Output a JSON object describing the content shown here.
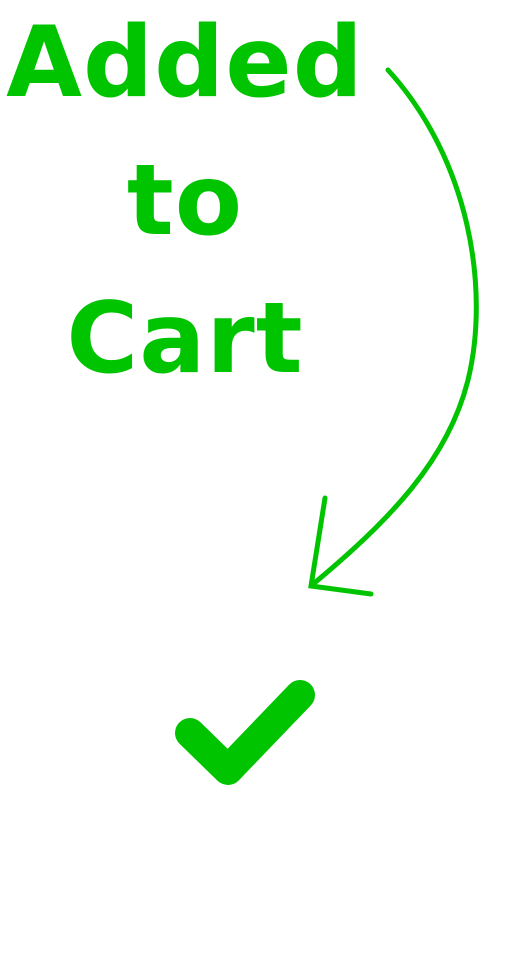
{
  "message": {
    "line1": "Added",
    "line2": "to",
    "line3": "Cart"
  },
  "colors": {
    "accent": "#00c400"
  },
  "icons": {
    "arrow": "curved-arrow-icon",
    "check": "checkmark-icon"
  }
}
